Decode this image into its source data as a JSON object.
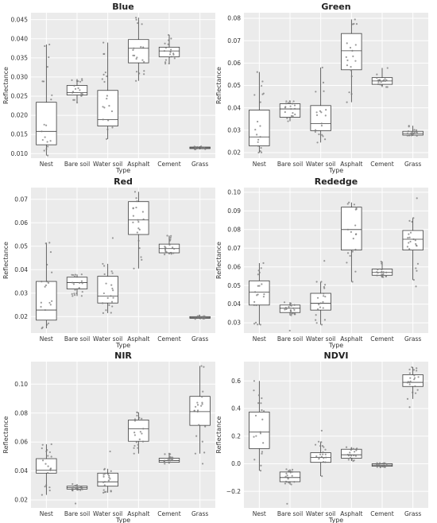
{
  "chart_data": [
    {
      "type": "box",
      "title": "Blue",
      "xlabel": "Type",
      "ylabel": "Reflectance",
      "categories": [
        "Nest",
        "Bare soil",
        "Water soil",
        "Asphalt",
        "Cement",
        "Grass"
      ],
      "ylim": [
        0.0088,
        0.0468
      ],
      "yticks": [
        "0.010",
        "0.015",
        "0.020",
        "0.025",
        "0.030",
        "0.035",
        "0.040",
        "0.045"
      ],
      "boxes": [
        {
          "min": 0.0095,
          "q1": 0.0123,
          "median": 0.0158,
          "q3": 0.0234,
          "max": 0.0385
        },
        {
          "min": 0.0233,
          "q1": 0.0253,
          "median": 0.0259,
          "q3": 0.0278,
          "max": 0.0295
        },
        {
          "min": 0.0138,
          "q1": 0.0172,
          "median": 0.0189,
          "q3": 0.0265,
          "max": 0.039
        },
        {
          "min": 0.029,
          "q1": 0.0337,
          "median": 0.0375,
          "q3": 0.0398,
          "max": 0.0455
        },
        {
          "min": 0.0335,
          "q1": 0.0353,
          "median": 0.0368,
          "q3": 0.0378,
          "max": 0.041
        },
        {
          "min": 0.0111,
          "q1": 0.0113,
          "median": 0.0115,
          "q3": 0.0117,
          "max": 0.0119
        }
      ],
      "outliers": [
        [],
        [],
        [],
        [],
        [],
        []
      ]
    },
    {
      "type": "box",
      "title": "Green",
      "xlabel": "Type",
      "ylabel": "Reflectance",
      "categories": [
        "Nest",
        "Bare soil",
        "Water soil",
        "Asphalt",
        "Cement",
        "Grass"
      ],
      "ylim": [
        0.0175,
        0.0825
      ],
      "yticks": [
        "0.02",
        "0.03",
        "0.04",
        "0.05",
        "0.06",
        "0.07",
        "0.08"
      ],
      "boxes": [
        {
          "min": 0.02,
          "q1": 0.023,
          "median": 0.027,
          "q3": 0.039,
          "max": 0.056
        },
        {
          "min": 0.034,
          "q1": 0.0358,
          "median": 0.0395,
          "q3": 0.0418,
          "max": 0.043
        },
        {
          "min": 0.0245,
          "q1": 0.0298,
          "median": 0.033,
          "q3": 0.041,
          "max": 0.058
        },
        {
          "min": 0.0425,
          "q1": 0.057,
          "median": 0.0655,
          "q3": 0.0732,
          "max": 0.0795
        },
        {
          "min": 0.0493,
          "q1": 0.0505,
          "median": 0.052,
          "q3": 0.0535,
          "max": 0.0578
        },
        {
          "min": 0.0275,
          "q1": 0.0278,
          "median": 0.0285,
          "q3": 0.0295,
          "max": 0.032
        }
      ],
      "outliers": [
        [],
        [],
        [],
        [],
        [],
        []
      ]
    },
    {
      "type": "box",
      "title": "Red",
      "xlabel": "Type",
      "ylabel": "Reflectance",
      "categories": [
        "Nest",
        "Bare soil",
        "Water soil",
        "Asphalt",
        "Cement",
        "Grass"
      ],
      "ylim": [
        0.013,
        0.075
      ],
      "yticks": [
        "0.02",
        "0.03",
        "0.04",
        "0.05",
        "0.06",
        "0.07"
      ],
      "boxes": [
        {
          "min": 0.015,
          "q1": 0.0185,
          "median": 0.0228,
          "q3": 0.035,
          "max": 0.0515
        },
        {
          "min": 0.0288,
          "q1": 0.0318,
          "median": 0.0345,
          "q3": 0.0368,
          "max": 0.038
        },
        {
          "min": 0.0215,
          "q1": 0.0258,
          "median": 0.0288,
          "q3": 0.0372,
          "max": 0.0425
        },
        {
          "min": 0.0405,
          "q1": 0.055,
          "median": 0.0612,
          "q3": 0.069,
          "max": 0.0732
        },
        {
          "min": 0.0465,
          "q1": 0.0472,
          "median": 0.049,
          "q3": 0.0509,
          "max": 0.0545
        },
        {
          "min": 0.019,
          "q1": 0.0193,
          "median": 0.0196,
          "q3": 0.02,
          "max": 0.0205
        }
      ],
      "outliers": [
        [],
        [],
        [
          0.0535
        ],
        [],
        [],
        []
      ]
    },
    {
      "type": "box",
      "title": "Rededge",
      "xlabel": "Type",
      "ylabel": "Reflectance",
      "categories": [
        "Nest",
        "Bare soil",
        "Water soil",
        "Asphalt",
        "Cement",
        "Grass"
      ],
      "ylim": [
        0.0245,
        0.1025
      ],
      "yticks": [
        "0.03",
        "0.04",
        "0.05",
        "0.06",
        "0.07",
        "0.08",
        "0.09",
        "0.10"
      ],
      "boxes": [
        {
          "min": 0.029,
          "q1": 0.0395,
          "median": 0.0465,
          "q3": 0.0525,
          "max": 0.062
        },
        {
          "min": 0.034,
          "q1": 0.0355,
          "median": 0.0378,
          "q3": 0.0395,
          "max": 0.041
        },
        {
          "min": 0.029,
          "q1": 0.0368,
          "median": 0.0405,
          "q3": 0.0458,
          "max": 0.052
        },
        {
          "min": 0.052,
          "q1": 0.069,
          "median": 0.08,
          "q3": 0.092,
          "max": 0.0945
        },
        {
          "min": 0.0545,
          "q1": 0.0555,
          "median": 0.057,
          "q3": 0.0588,
          "max": 0.0628
        },
        {
          "min": 0.053,
          "q1": 0.069,
          "median": 0.0748,
          "q3": 0.0795,
          "max": 0.0862
        }
      ],
      "outliers": [
        [],
        [
          0.0258
        ],
        [
          0.0632
        ],
        [],
        [],
        [
          0.0968,
          0.0495
        ]
      ]
    },
    {
      "type": "box",
      "title": "NIR",
      "xlabel": "Type",
      "ylabel": "Reflectance",
      "categories": [
        "Nest",
        "Bare soil",
        "Water soil",
        "Asphalt",
        "Cement",
        "Grass"
      ],
      "ylim": [
        0.0145,
        0.1155
      ],
      "yticks": [
        "0.02",
        "0.04",
        "0.06",
        "0.08",
        "0.10"
      ],
      "boxes": [
        {
          "min": 0.0235,
          "q1": 0.0385,
          "median": 0.0405,
          "q3": 0.0485,
          "max": 0.0585
        },
        {
          "min": 0.0265,
          "q1": 0.0275,
          "median": 0.0285,
          "q3": 0.0295,
          "max": 0.031
        },
        {
          "min": 0.025,
          "q1": 0.0295,
          "median": 0.0325,
          "q3": 0.0385,
          "max": 0.0415
        },
        {
          "min": 0.052,
          "q1": 0.0605,
          "median": 0.0692,
          "q3": 0.0752,
          "max": 0.0805
        },
        {
          "min": 0.045,
          "q1": 0.046,
          "median": 0.0472,
          "q3": 0.0488,
          "max": 0.052
        },
        {
          "min": 0.052,
          "q1": 0.0715,
          "median": 0.081,
          "q3": 0.0915,
          "max": 0.1125
        }
      ],
      "outliers": [
        [],
        [
          0.0175
        ],
        [
          0.0535
        ],
        [],
        [],
        [
          0.045
        ]
      ]
    },
    {
      "type": "box",
      "title": "NDVI",
      "xlabel": "Type",
      "ylabel": "Reflectance",
      "categories": [
        "Nest",
        "Bare soil",
        "Water soil",
        "Asphalt",
        "Cement",
        "Grass"
      ],
      "ylim": [
        -0.32,
        0.74
      ],
      "yticks": [
        "−0.2",
        "0.0",
        "0.2",
        "0.4",
        "0.6"
      ],
      "boxes": [
        {
          "min": -0.05,
          "q1": 0.11,
          "median": 0.23,
          "q3": 0.375,
          "max": 0.6
        },
        {
          "min": -0.15,
          "q1": -0.13,
          "median": -0.1,
          "q3": -0.06,
          "max": -0.04
        },
        {
          "min": -0.09,
          "q1": 0.01,
          "median": 0.045,
          "q3": 0.08,
          "max": 0.16
        },
        {
          "min": 0.02,
          "q1": 0.04,
          "median": 0.065,
          "q3": 0.105,
          "max": 0.12
        },
        {
          "min": -0.025,
          "q1": -0.018,
          "median": -0.01,
          "q3": 0.0,
          "max": 0.005
        },
        {
          "min": 0.47,
          "q1": 0.56,
          "median": 0.59,
          "q3": 0.645,
          "max": 0.7
        }
      ],
      "outliers": [
        [],
        [
          -0.29
        ],
        [
          0.24
        ],
        [],
        [],
        [
          0.41
        ]
      ]
    }
  ]
}
